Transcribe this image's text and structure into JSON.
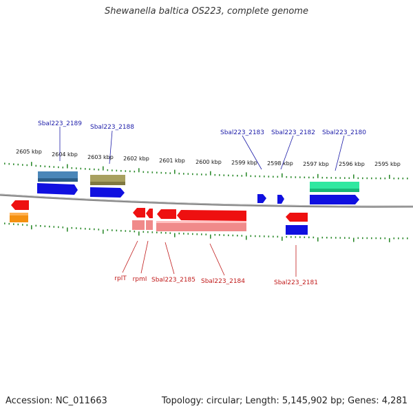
{
  "title": "Shewanella baltica OS223, complete genome",
  "footer": {
    "accession": "Accession: NC_011663",
    "summary": "Topology: circular; Length: 5,145,902 bp; Genes: 4,281"
  },
  "axis": {
    "unit": "kbp",
    "tick_labels": [
      "2605 kbp",
      "2604 kbp",
      "2603 kbp",
      "2602 kbp",
      "2601 kbp",
      "2600 kbp",
      "2599 kbp",
      "2598 kbp",
      "2597 kbp",
      "2596 kbp",
      "2595 kbp"
    ]
  },
  "colors": {
    "tick": "#2e8b2e",
    "backbone": "#888888",
    "top_label": "#1a1aa8",
    "bottom_label": "#c01818",
    "blue": "#1010e0",
    "red": "#ee1010",
    "pink": "#f08a8a",
    "steel": "#4a86b8",
    "olive": "#a8a060",
    "teal": "#30e8a0",
    "orange": "#f49010"
  },
  "genes_top_labels": [
    "Sbal223_2189",
    "Sbal223_2188",
    "Sbal223_2183",
    "Sbal223_2182",
    "Sbal223_2180"
  ],
  "genes_bottom_labels": [
    "rplT",
    "rpmI",
    "Sbal223_2185",
    "Sbal223_2184",
    "Sbal223_2181"
  ]
}
